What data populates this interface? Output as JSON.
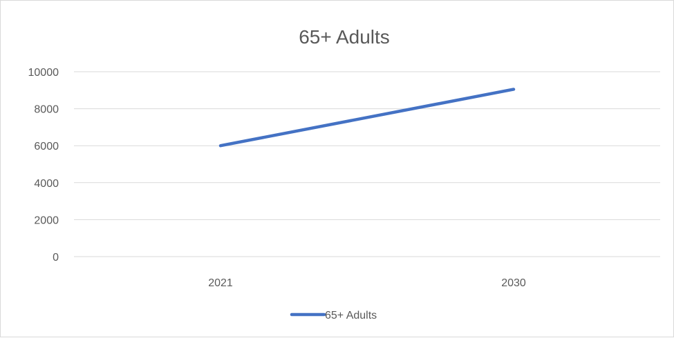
{
  "chart_data": {
    "type": "line",
    "title": "65+ Adults",
    "xlabel": "",
    "ylabel": "",
    "categories": [
      "2021",
      "2030"
    ],
    "series": [
      {
        "name": "65+ Adults",
        "values": [
          6000,
          9050
        ],
        "color": "#4472c4"
      }
    ],
    "ylim": [
      0,
      10000
    ],
    "yticks": [
      0,
      2000,
      4000,
      6000,
      8000,
      10000
    ],
    "grid": true,
    "legend_position": "bottom"
  }
}
